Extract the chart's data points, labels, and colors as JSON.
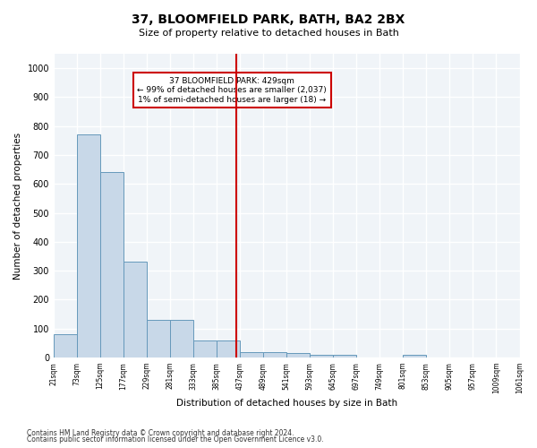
{
  "title": "37, BLOOMFIELD PARK, BATH, BA2 2BX",
  "subtitle": "Size of property relative to detached houses in Bath",
  "xlabel": "Distribution of detached houses by size in Bath",
  "ylabel": "Number of detached properties",
  "bar_color": "#c8d8e8",
  "bar_edge_color": "#6699bb",
  "background_color": "#f0f4f8",
  "grid_color": "#ffffff",
  "vline_x": 429,
  "vline_color": "#cc0000",
  "annotation_text": "37 BLOOMFIELD PARK: 429sqm\n← 99% of detached houses are smaller (2,037)\n1% of semi-detached houses are larger (18) →",
  "annotation_box_color": "#cc0000",
  "footnote1": "Contains HM Land Registry data © Crown copyright and database right 2024.",
  "footnote2": "Contains public sector information licensed under the Open Government Licence v3.0.",
  "bin_edges": [
    21,
    73,
    125,
    177,
    229,
    281,
    333,
    385,
    437,
    489,
    541,
    593,
    645,
    697,
    749,
    801,
    853,
    905,
    957,
    1009,
    1061
  ],
  "bin_labels": [
    "21sqm",
    "73sqm",
    "125sqm",
    "177sqm",
    "229sqm",
    "281sqm",
    "333sqm",
    "385sqm",
    "437sqm",
    "489sqm",
    "541sqm",
    "593sqm",
    "645sqm",
    "697sqm",
    "749sqm",
    "801sqm",
    "853sqm",
    "905sqm",
    "957sqm",
    "1009sqm",
    "1061sqm"
  ],
  "bar_heights": [
    80,
    770,
    640,
    330,
    130,
    130,
    60,
    60,
    20,
    20,
    15,
    10,
    10,
    0,
    0,
    10,
    0,
    0,
    0,
    0
  ],
  "ylim": [
    0,
    1050
  ],
  "yticks": [
    0,
    100,
    200,
    300,
    400,
    500,
    600,
    700,
    800,
    900,
    1000
  ]
}
